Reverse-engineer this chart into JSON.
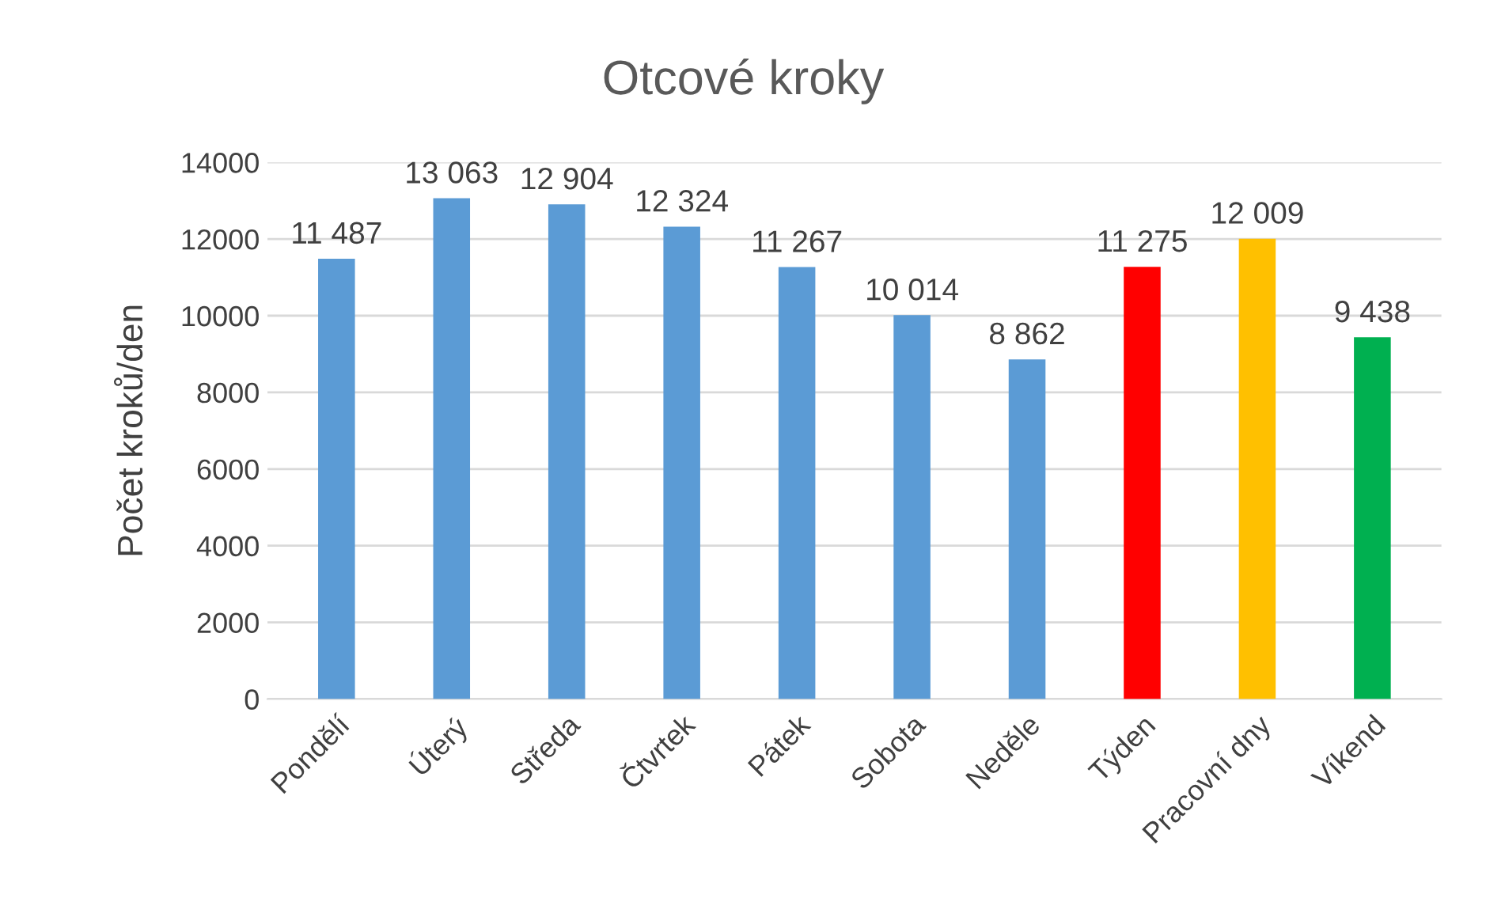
{
  "chart_data": {
    "type": "bar",
    "title": "Otcové kroky",
    "ylabel": "Počet kroků/den",
    "categories": [
      "Pondělí",
      "Úterý",
      "Středa",
      "Čtvrtek",
      "Pátek",
      "Sobota",
      "Neděle",
      "Týden",
      "Pracovní dny",
      "Víkend"
    ],
    "values": [
      11487,
      13063,
      12904,
      12324,
      11267,
      10014,
      8862,
      11275,
      12009,
      9438
    ],
    "colors": [
      "#5b9bd5",
      "#5b9bd5",
      "#5b9bd5",
      "#5b9bd5",
      "#5b9bd5",
      "#5b9bd5",
      "#5b9bd5",
      "#ff0000",
      "#ffc000",
      "#00b050"
    ],
    "value_labels": [
      "11 487",
      "13 063",
      "12 904",
      "12 324",
      "11 267",
      "10 014",
      "8 862",
      "11 275",
      "12 009",
      "9 438"
    ],
    "ylim": [
      0,
      14000
    ],
    "yticks": [
      0,
      2000,
      4000,
      6000,
      8000,
      10000,
      12000,
      14000
    ],
    "grid": "y",
    "legend": false
  }
}
